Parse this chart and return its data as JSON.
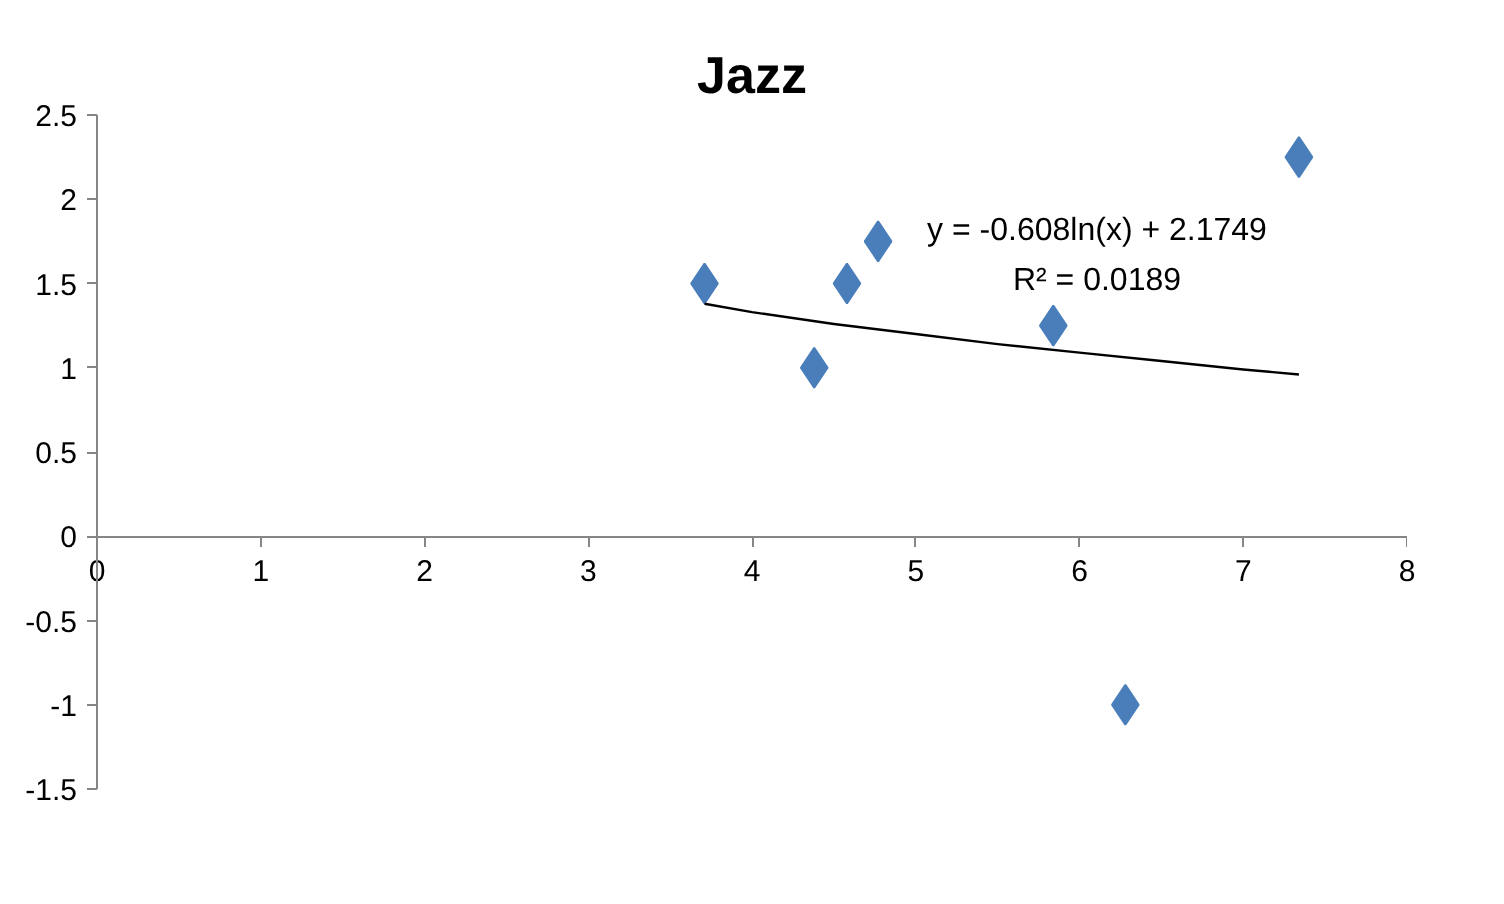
{
  "chart_data": {
    "type": "scatter",
    "title": "Jazz",
    "series": [
      {
        "color": "#4a7ebb",
        "marker": "diamond",
        "x": [
          3.71,
          4.38,
          4.58,
          4.77,
          5.84,
          6.28,
          7.34
        ],
        "values": [
          1.5,
          1.0,
          1.5,
          1.75,
          1.25,
          -1.0,
          2.25
        ]
      },
      {
        "type": "line",
        "color": "#000000",
        "marker": "none",
        "x": [
          3.71,
          4,
          4.5,
          5,
          5.5,
          6,
          6.5,
          7,
          7.34
        ],
        "values": [
          1.38,
          1.33,
          1.26,
          1.2,
          1.14,
          1.09,
          1.04,
          0.99,
          0.96
        ]
      }
    ],
    "xlim": [
      0,
      8
    ],
    "xticks": [
      0,
      1,
      2,
      3,
      4,
      5,
      6,
      7,
      8
    ],
    "ylim": [
      -1.5,
      2.5
    ],
    "yticks": [
      -1.5,
      -1,
      -0.5,
      0,
      0.5,
      1,
      1.5,
      2,
      2.5
    ],
    "grid": false,
    "annotations": [
      "y = -0.608ln(x) + 2.1749",
      "R² = 0.0189"
    ]
  }
}
